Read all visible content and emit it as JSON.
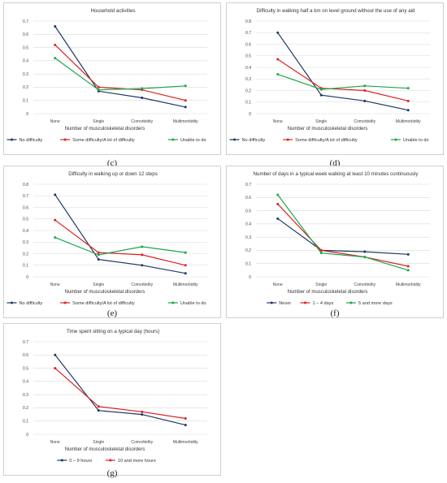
{
  "chart_data": [
    {
      "panel_label": "(c)",
      "type": "line",
      "title": "Household activities",
      "xlabel": "Number of musculoskeletal disorders",
      "categories": [
        "None",
        "Single",
        "Comorbidity",
        "Multimorbidity"
      ],
      "ylim": [
        0,
        0.7
      ],
      "yticks": [
        "0",
        "0.1",
        "0.2",
        "0.3",
        "0.4",
        "0.5",
        "0.6",
        "0.7"
      ],
      "grid": true,
      "legend": "bottom",
      "series": [
        {
          "name": "No difficulty",
          "color": "#1f3864",
          "values": [
            0.66,
            0.17,
            0.12,
            0.05
          ]
        },
        {
          "name": "Some difficulty/A lot of difficulty",
          "color": "#e02020",
          "values": [
            0.52,
            0.2,
            0.18,
            0.1
          ]
        },
        {
          "name": "Unable to do",
          "color": "#1aa64a",
          "values": [
            0.42,
            0.18,
            0.19,
            0.21
          ]
        }
      ]
    },
    {
      "panel_label": "(d)",
      "type": "line",
      "title": "Difficulty in walking half a km on level ground without the use of any aid",
      "xlabel": "Number of musculoskeletal disorders",
      "categories": [
        "None",
        "Single",
        "Comorbidity",
        "Multimorbidity"
      ],
      "ylim": [
        0,
        0.8
      ],
      "yticks": [
        "0",
        "0.1",
        "0.2",
        "0.3",
        "0.4",
        "0.5",
        "0.6",
        "0.7",
        "0.8"
      ],
      "grid": true,
      "legend": "bottom",
      "series": [
        {
          "name": "No difficulty",
          "color": "#1f3864",
          "values": [
            0.7,
            0.16,
            0.11,
            0.03
          ]
        },
        {
          "name": "Some difficulty/A lot of difficulty",
          "color": "#e02020",
          "values": [
            0.47,
            0.22,
            0.2,
            0.11
          ]
        },
        {
          "name": "Unable to do",
          "color": "#1aa64a",
          "values": [
            0.34,
            0.21,
            0.24,
            0.22
          ]
        }
      ]
    },
    {
      "panel_label": "(e)",
      "type": "line",
      "title": "Difficulty in walking up or down 12 steps",
      "xlabel": "Number of musculoskeletal disorders",
      "categories": [
        "None",
        "Single",
        "Comorbidity",
        "Multimorbidity"
      ],
      "ylim": [
        0,
        0.8
      ],
      "yticks": [
        "0",
        "0.1",
        "0.2",
        "0.3",
        "0.4",
        "0.5",
        "0.6",
        "0.7",
        "0.8"
      ],
      "grid": true,
      "legend": "bottom",
      "series": [
        {
          "name": "No difficulty",
          "color": "#1f3864",
          "values": [
            0.71,
            0.15,
            0.1,
            0.03
          ]
        },
        {
          "name": "Some difficulty/A lot of difficulty",
          "color": "#e02020",
          "values": [
            0.49,
            0.21,
            0.19,
            0.1
          ]
        },
        {
          "name": "Unable to do",
          "color": "#1aa64a",
          "values": [
            0.34,
            0.19,
            0.26,
            0.21
          ]
        }
      ]
    },
    {
      "panel_label": "(f)",
      "type": "line",
      "title": "Number of days in a typical week walking at least 10 minutes continuously",
      "xlabel": "Number of musculoskeletal disorders",
      "categories": [
        "None",
        "Single",
        "Comorbidity",
        "Multimorbidity"
      ],
      "ylim": [
        0,
        0.7
      ],
      "yticks": [
        "0",
        "0.1",
        "0.2",
        "0.3",
        "0.4",
        "0.5",
        "0.6",
        "0.7"
      ],
      "grid": true,
      "legend": "bottom",
      "series": [
        {
          "name": "Never",
          "color": "#1f3864",
          "values": [
            0.44,
            0.2,
            0.19,
            0.17
          ]
        },
        {
          "name": "1 – 4 days",
          "color": "#e02020",
          "values": [
            0.55,
            0.2,
            0.15,
            0.08
          ]
        },
        {
          "name": "5 and more days",
          "color": "#1aa64a",
          "values": [
            0.62,
            0.18,
            0.15,
            0.05
          ]
        }
      ]
    },
    {
      "panel_label": "(g)",
      "type": "line",
      "title": "Time spent sitting on a typical day (hours)",
      "xlabel": "Number of musculoskeletal disorders",
      "categories": [
        "None",
        "Single",
        "Comorbidity",
        "Multimorbidity"
      ],
      "ylim": [
        0,
        0.7
      ],
      "yticks": [
        "0",
        "0.1",
        "0.2",
        "0.3",
        "0.4",
        "0.5",
        "0.6",
        "0.7"
      ],
      "grid": true,
      "legend": "bottom",
      "series": [
        {
          "name": "0 – 9 hours",
          "color": "#1f3864",
          "values": [
            0.6,
            0.18,
            0.15,
            0.07
          ]
        },
        {
          "name": "10 and more hours",
          "color": "#e02020",
          "values": [
            0.5,
            0.21,
            0.17,
            0.12
          ]
        }
      ]
    }
  ]
}
